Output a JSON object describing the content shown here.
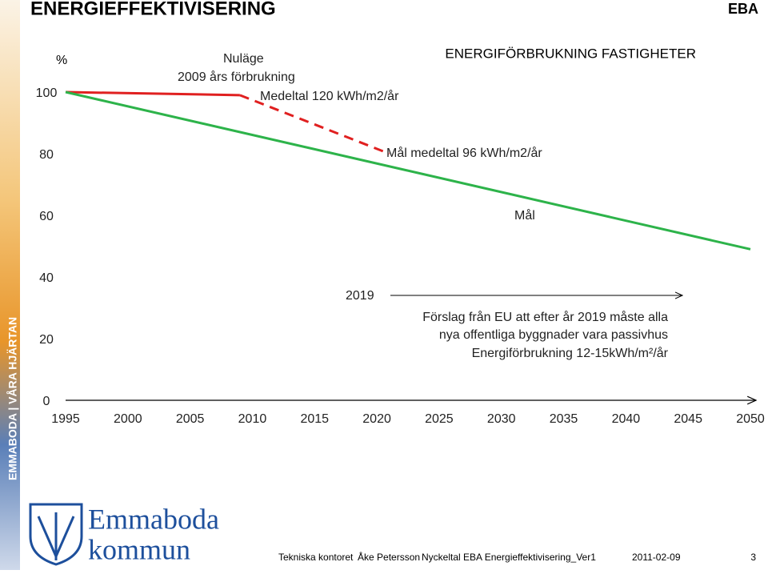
{
  "header": {
    "title": "ENERGIEFFEKTIVISERING",
    "tag": "EBA"
  },
  "sidebar": {
    "slogan": "EMMABODA | VÅRA HJÄRTAN"
  },
  "logo": {
    "line1": "Emmaboda",
    "line2": "kommun"
  },
  "chart_data": {
    "type": "line",
    "title": "ENERGIFÖRBRUKNING FASTIGHETER",
    "y_unit": "%",
    "xlim": [
      1995,
      2050
    ],
    "xticks": [
      1995,
      2000,
      2005,
      2010,
      2015,
      2020,
      2025,
      2030,
      2035,
      2040,
      2045,
      2050
    ],
    "ylim": [
      0,
      100
    ],
    "yticks": [
      0,
      20,
      40,
      60,
      80,
      100
    ],
    "series": [
      {
        "color": "#e02020",
        "style": "solid",
        "x": [
          1995,
          2009
        ],
        "values": [
          100,
          99
        ]
      },
      {
        "color": "#e02020",
        "style": "dashed",
        "x": [
          2009,
          2021
        ],
        "values": [
          99,
          80
        ]
      },
      {
        "color": "#2db34a",
        "style": "solid",
        "x": [
          1995,
          2050
        ],
        "values": [
          100,
          49
        ]
      }
    ],
    "annotations": [
      "Nuläge",
      "2009 års förbrukning",
      "Medeltal 120 kWh/m2/år",
      "Mål medeltal 96 kWh/m2/år",
      "Mål",
      "2019",
      "Förslag från EU att efter år 2019 måste alla",
      "nya offentliga byggnader vara passivhus",
      "Energiförbrukning 12-15kWh/m²/år"
    ]
  },
  "footer": {
    "department": "Tekniska kontoret",
    "author": "Åke Petersson",
    "document": "Nyckeltal EBA Energieffektivisering_Ver1",
    "date": "2011-02-09",
    "page": "3"
  }
}
